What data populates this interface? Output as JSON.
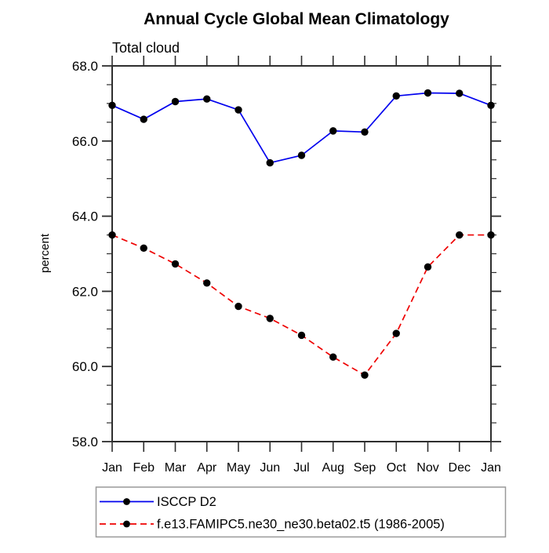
{
  "chart_data": {
    "type": "line",
    "title": "Annual Cycle Global Mean Climatology",
    "subtitle": "Total cloud",
    "ylabel": "percent",
    "x_categories": [
      "Jan",
      "Feb",
      "Mar",
      "Apr",
      "May",
      "Jun",
      "Jul",
      "Aug",
      "Sep",
      "Oct",
      "Nov",
      "Dec",
      "Jan"
    ],
    "ylim": [
      58.0,
      68.0
    ],
    "y_major_ticks": [
      58.0,
      60.0,
      62.0,
      64.0,
      66.0,
      68.0
    ],
    "y_major_tick_labels": [
      "58.0",
      "60.0",
      "62.0",
      "64.0",
      "66.0",
      "68.0"
    ],
    "y_minor_step": 0.5,
    "grid": false,
    "legend_position": "bottom-left",
    "series": [
      {
        "name": "ISCCP D2",
        "color": "#0000ee",
        "line_style": "solid",
        "marker": "filled-circle",
        "marker_color": "#000000",
        "values": [
          66.95,
          66.58,
          67.05,
          67.12,
          66.83,
          65.42,
          65.62,
          66.27,
          66.24,
          67.2,
          67.28,
          67.27,
          66.95
        ]
      },
      {
        "name": "f.e13.FAMIPC5.ne30_ne30.beta02.t5 (1986-2005)",
        "color": "#ee0000",
        "line_style": "dashed",
        "marker": "filled-circle",
        "marker_color": "#000000",
        "values": [
          63.5,
          63.15,
          62.73,
          62.22,
          61.6,
          61.28,
          60.83,
          60.25,
          59.77,
          60.88,
          62.65,
          63.5,
          63.5
        ]
      }
    ],
    "colors": {
      "axis": "#2e2e2e",
      "text": "#000000",
      "legend_border": "#999999",
      "background": "#ffffff"
    }
  }
}
